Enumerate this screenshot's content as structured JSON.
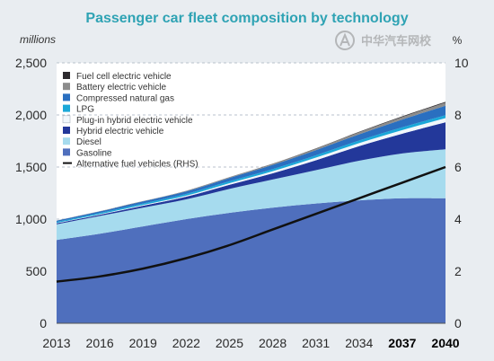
{
  "chart_data": {
    "type": "area",
    "title": "Passenger car fleet composition by technology",
    "left_unit": "millions",
    "right_unit": "%",
    "x": [
      "2013",
      "2016",
      "2019",
      "2022",
      "2025",
      "2028",
      "2031",
      "2034",
      "2037",
      "2040"
    ],
    "bold_x_labels": [
      "2037",
      "2040"
    ],
    "ylim": [
      0,
      2500
    ],
    "y_ticks": [
      "0",
      "500",
      "1,000",
      "1,500",
      "2,000",
      "2,500"
    ],
    "y2lim": [
      0,
      10
    ],
    "y2_ticks": [
      "0",
      "2",
      "4",
      "6",
      "8",
      "10"
    ],
    "grid": "dashed horizontal",
    "legend_position": "top-left",
    "series": [
      {
        "name": "Gasoline",
        "color": "#4f6fbd",
        "values": [
          800,
          860,
          930,
          1000,
          1060,
          1110,
          1150,
          1180,
          1200,
          1200
        ]
      },
      {
        "name": "Diesel",
        "color": "#a6dbee",
        "values": [
          150,
          170,
          180,
          190,
          230,
          270,
          320,
          380,
          430,
          470
        ]
      },
      {
        "name": "Hybrid electric vehicle",
        "color": "#23389a",
        "values": [
          10,
          12,
          18,
          25,
          40,
          60,
          95,
          140,
          190,
          260
        ]
      },
      {
        "name": "Plug-in hybrid electric vehicle",
        "color": "#f1f7fb",
        "values": [
          3,
          5,
          8,
          10,
          15,
          20,
          25,
          30,
          35,
          40
        ]
      },
      {
        "name": "LPG",
        "color": "#1ba8d8",
        "values": [
          10,
          12,
          14,
          16,
          18,
          20,
          22,
          24,
          26,
          28
        ]
      },
      {
        "name": "Compressed natural gas",
        "color": "#2a6fc0",
        "values": [
          12,
          15,
          20,
          25,
          32,
          40,
          50,
          60,
          75,
          90
        ]
      },
      {
        "name": "Battery electric vehicle",
        "color": "#8c8c8c",
        "values": [
          1,
          2,
          3,
          5,
          7,
          10,
          14,
          20,
          25,
          30
        ]
      },
      {
        "name": "Fuel cell electric vehicle",
        "color": "#2d2a2e",
        "values": [
          0,
          0,
          0,
          1,
          1,
          2,
          3,
          4,
          6,
          8
        ]
      }
    ],
    "line_series": {
      "name": "Alternative fuel vehicles (RHS)",
      "axis": "right",
      "color": "#111111",
      "values": [
        1.6,
        1.8,
        2.1,
        2.5,
        3.0,
        3.6,
        4.2,
        4.8,
        5.4,
        6.0
      ]
    }
  },
  "legend_order": [
    "Fuel cell electric vehicle",
    "Battery electric vehicle",
    "Compressed natural gas",
    "LPG",
    "Plug-in hybrid electric vehicle",
    "Hybrid electric vehicle",
    "Diesel",
    "Gasoline",
    "Alternative fuel vehicles (RHS)"
  ],
  "watermark": {
    "text": "中华汽车网校"
  },
  "colors": {
    "background": "#e9edf1",
    "title": "#2fa3b4",
    "axis_text": "#2a2a2a"
  }
}
